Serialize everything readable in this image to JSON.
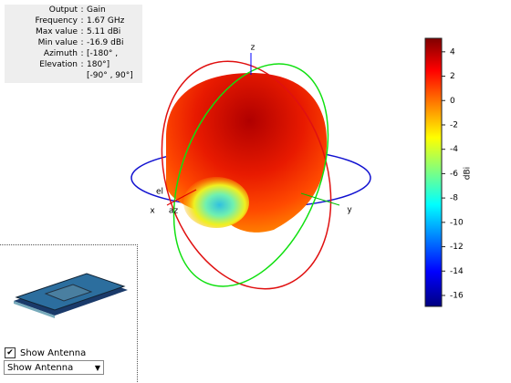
{
  "info_panel": {
    "rows": [
      {
        "label": "Output",
        "value": "Gain"
      },
      {
        "label": "Frequency",
        "value": "1.67 GHz"
      },
      {
        "label": "Max value",
        "value": "5.11 dBi"
      },
      {
        "label": "Min value",
        "value": "-16.9 dBi"
      },
      {
        "label": "Azimuth",
        "value": "[-180° ,"
      },
      {
        "label": "Elevation",
        "value": "180°]"
      },
      {
        "value": "[-90° , 90°]"
      }
    ]
  },
  "axes": {
    "x": "x",
    "y": "y",
    "z": "z",
    "az": "az",
    "el": "el"
  },
  "colorbar": {
    "label": "dBi",
    "clim": [
      -16.9,
      5.11
    ],
    "ticks": [
      4,
      2,
      0,
      -2,
      -4,
      -6,
      -8,
      -10,
      -12,
      -14,
      -16
    ]
  },
  "controls": {
    "checkbox": "Show Antenna",
    "dropdown": "Show Antenna"
  }
}
